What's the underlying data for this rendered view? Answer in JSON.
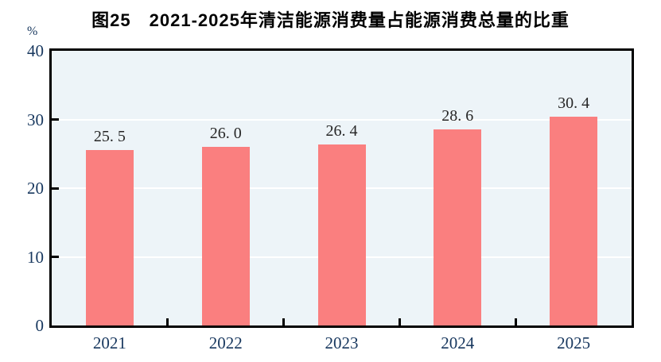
{
  "header": {
    "title": "图25　2021-2025年清洁能源消费量占能源消费总量的比重",
    "unit_label": "%"
  },
  "colors": {
    "bar_fill": "#FA7F7F",
    "plot_background": "#EDF4F8",
    "gridline": "#FFFFFF",
    "frame": "#000000",
    "axis_text": "#17375E",
    "value_label_text": "#262626",
    "title_text": "#000000"
  },
  "chart_data": {
    "type": "bar",
    "title": "图25　2021-2025年清洁能源消费量占能源消费总量的比重",
    "categories": [
      "2021",
      "2022",
      "2023",
      "2024",
      "2025"
    ],
    "values": [
      25.5,
      26.0,
      26.4,
      28.6,
      30.4
    ],
    "bar_value_labels": [
      "25. 5",
      "26. 0",
      "26. 4",
      "28. 6",
      "30. 4"
    ],
    "xlabel": "",
    "ylabel": "%",
    "ylim": [
      0,
      40
    ],
    "yticks": [
      0,
      10,
      20,
      30,
      40
    ],
    "grid": "horizontal white gridlines at 10, 20, 30",
    "legend_position": "none",
    "series_name": "清洁能源消费量占能源消费总量的比重"
  }
}
